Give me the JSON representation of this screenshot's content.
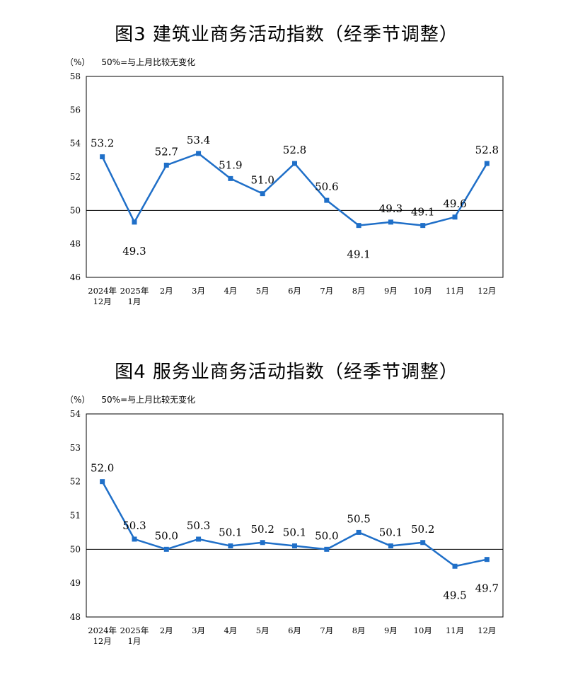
{
  "chart_data": [
    {
      "type": "line",
      "title": "图3  建筑业商务活动指数（经季节调整）",
      "unit_label": "（%）",
      "reference_note": "50%=与上月比较无变化",
      "categories": [
        [
          "2024年",
          "12月"
        ],
        [
          "2025年",
          "1月"
        ],
        [
          "2月"
        ],
        [
          "3月"
        ],
        [
          "4月"
        ],
        [
          "5月"
        ],
        [
          "6月"
        ],
        [
          "7月"
        ],
        [
          "8月"
        ],
        [
          "9月"
        ],
        [
          "10月"
        ],
        [
          "11月"
        ],
        [
          "12月"
        ]
      ],
      "series": [
        {
          "values": [
            53.2,
            49.3,
            52.7,
            53.4,
            51.9,
            51.0,
            52.8,
            50.6,
            49.1,
            49.3,
            49.1,
            49.6,
            52.8
          ]
        }
      ],
      "value_labels": [
        "53.2",
        "49.3",
        "52.7",
        "53.4",
        "51.9",
        "51.0",
        "52.8",
        "50.6",
        "49.1",
        "49.3",
        "49.1",
        "49.6",
        "52.8"
      ],
      "label_positions": [
        "above",
        "below",
        "above",
        "above",
        "above",
        "above",
        "above",
        "above",
        "below",
        "above",
        "above",
        "above",
        "above"
      ],
      "ylim": [
        46,
        58
      ],
      "yticks": [
        "46",
        "48",
        "50",
        "52",
        "54",
        "56",
        "58"
      ],
      "reference_value": 50,
      "grid": false,
      "color": "#1f6fc8"
    },
    {
      "type": "line",
      "title": "图4  服务业商务活动指数（经季节调整）",
      "unit_label": "（%）",
      "reference_note": "50%=与上月比较无变化",
      "categories": [
        [
          "2024年",
          "12月"
        ],
        [
          "2025年",
          "1月"
        ],
        [
          "2月"
        ],
        [
          "3月"
        ],
        [
          "4月"
        ],
        [
          "5月"
        ],
        [
          "6月"
        ],
        [
          "7月"
        ],
        [
          "8月"
        ],
        [
          "9月"
        ],
        [
          "10月"
        ],
        [
          "11月"
        ],
        [
          "12月"
        ]
      ],
      "series": [
        {
          "values": [
            52.0,
            50.3,
            50.0,
            50.3,
            50.1,
            50.2,
            50.1,
            50.0,
            50.5,
            50.1,
            50.2,
            49.5,
            49.7
          ]
        }
      ],
      "value_labels": [
        "52.0",
        "50.3",
        "50.0",
        "50.3",
        "50.1",
        "50.2",
        "50.1",
        "50.0",
        "50.5",
        "50.1",
        "50.2",
        "49.5",
        "49.7"
      ],
      "label_positions": [
        "above",
        "above",
        "above",
        "above",
        "above",
        "above",
        "above",
        "above",
        "above",
        "above",
        "above",
        "below",
        "below"
      ],
      "ylim": [
        48,
        54
      ],
      "yticks": [
        "48",
        "49",
        "50",
        "51",
        "52",
        "53",
        "54"
      ],
      "reference_value": 50,
      "grid": false,
      "color": "#1f6fc8"
    }
  ]
}
